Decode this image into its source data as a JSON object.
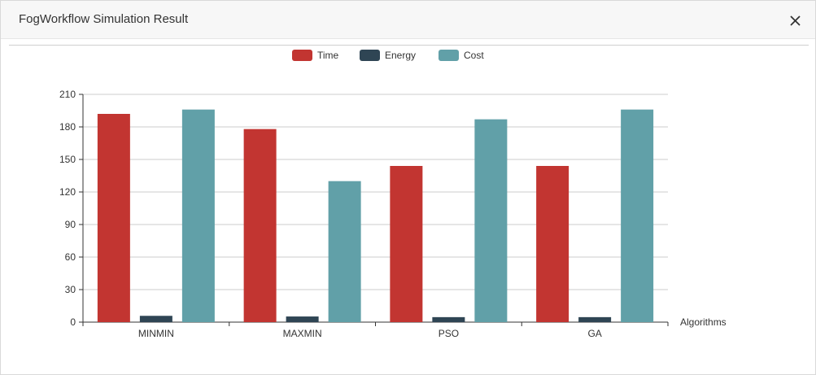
{
  "dialog": {
    "title": "FogWorkflow Simulation Result",
    "close_icon": "close-icon"
  },
  "chart_data": {
    "type": "bar",
    "title": "",
    "xlabel": "Algorithms",
    "ylabel": "",
    "categories": [
      "MINMIN",
      "MAXMIN",
      "PSO",
      "GA"
    ],
    "series": [
      {
        "name": "Time",
        "color": "#c23531",
        "values": [
          192,
          178,
          144,
          144
        ]
      },
      {
        "name": "Energy",
        "color": "#2f4554",
        "values": [
          5.8,
          5.2,
          4.6,
          4.6
        ]
      },
      {
        "name": "Cost",
        "color": "#61a0a8",
        "values": [
          196,
          130,
          187,
          196
        ]
      }
    ],
    "ylim": [
      0,
      210
    ],
    "yticks": [
      0,
      30,
      60,
      90,
      120,
      150,
      180,
      210
    ],
    "grid": true,
    "legend_position": "top-center"
  }
}
